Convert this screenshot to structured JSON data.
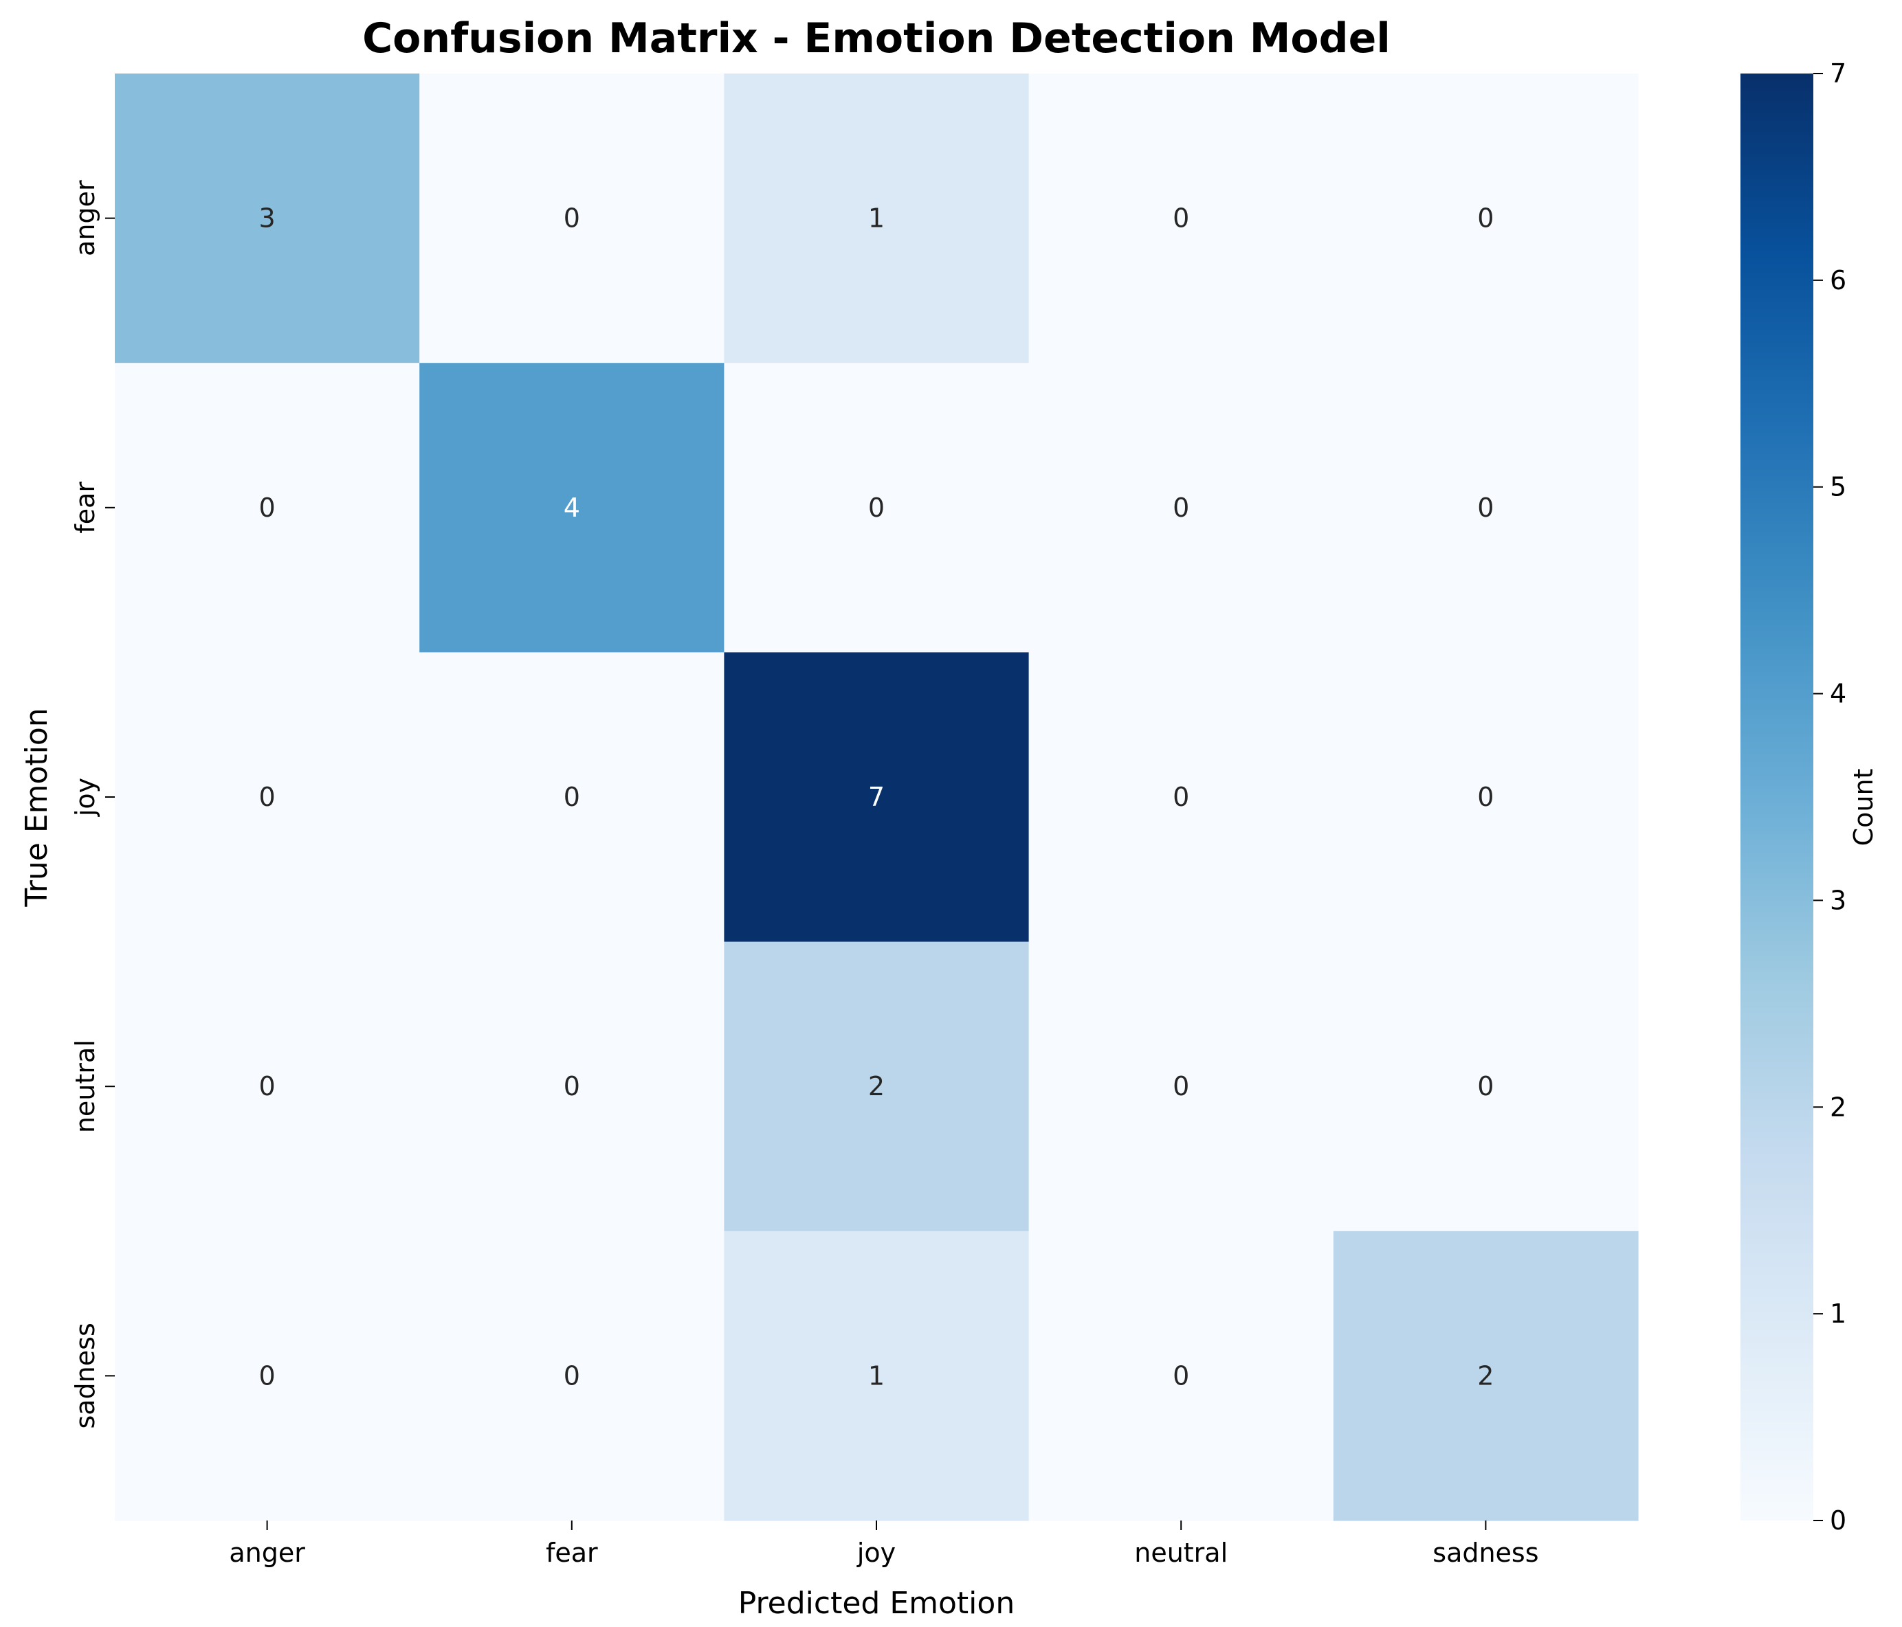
{
  "chart_data": {
    "type": "heatmap",
    "title": "Confusion Matrix - Emotion Detection Model",
    "xlabel": "Predicted Emotion",
    "ylabel": "True Emotion",
    "x_categories": [
      "anger",
      "fear",
      "joy",
      "neutral",
      "sadness"
    ],
    "y_categories": [
      "anger",
      "fear",
      "joy",
      "neutral",
      "sadness"
    ],
    "values": [
      [
        3,
        0,
        1,
        0,
        0
      ],
      [
        0,
        4,
        0,
        0,
        0
      ],
      [
        0,
        0,
        7,
        0,
        0
      ],
      [
        0,
        0,
        2,
        0,
        0
      ],
      [
        0,
        0,
        1,
        0,
        2
      ]
    ],
    "colorbar": {
      "label": "Count",
      "range": [
        0,
        7
      ],
      "ticks": [
        "0",
        "1",
        "2",
        "3",
        "4",
        "5",
        "6",
        "7"
      ]
    },
    "colormap": "Blues",
    "colors": {
      "low": "#f7fbff",
      "high": "#08306b",
      "text_dark": "#262626",
      "text_light": "#ffffff"
    },
    "annotations": true,
    "grid": false
  }
}
